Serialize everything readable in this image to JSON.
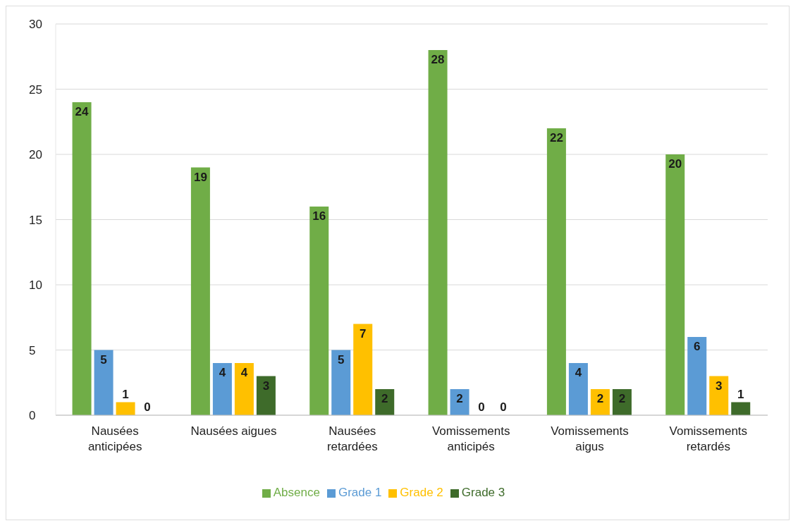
{
  "chart_data": {
    "type": "bar",
    "categories": [
      "Nausées anticipées",
      "Nausées aigues",
      "Nausées retardées",
      "Vomissements anticipés",
      "Vomissements aigus",
      "Vomissements retardés"
    ],
    "series": [
      {
        "name": "Absence",
        "color": "#70ad47",
        "values": [
          24,
          19,
          16,
          28,
          22,
          20
        ]
      },
      {
        "name": "Grade 1",
        "color": "#5b9bd5",
        "values": [
          5,
          4,
          5,
          2,
          4,
          6
        ]
      },
      {
        "name": "Grade 2",
        "color": "#ffc000",
        "values": [
          1,
          4,
          7,
          0,
          2,
          3
        ]
      },
      {
        "name": "Grade 3",
        "color": "#3e6b2a",
        "values": [
          0,
          3,
          2,
          0,
          2,
          1
        ]
      }
    ],
    "ylim": [
      0,
      30
    ],
    "yticks": [
      0,
      5,
      10,
      15,
      20,
      25,
      30
    ],
    "grid": "y",
    "legend": "bottom",
    "data_labels": true
  }
}
